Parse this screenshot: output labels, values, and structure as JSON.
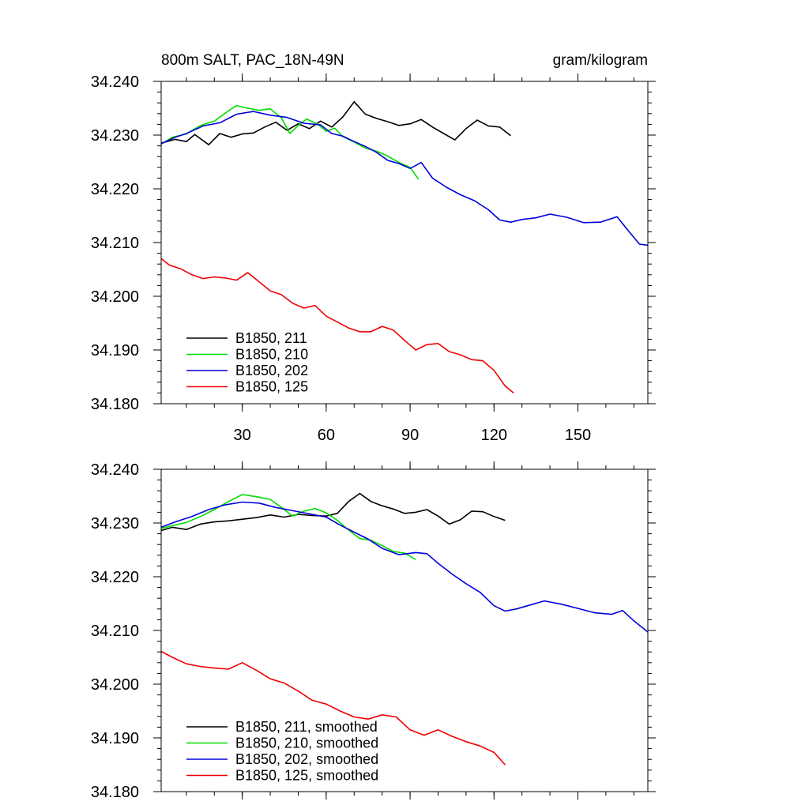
{
  "chart_data": [
    {
      "type": "line",
      "title": "800m SALT, PAC_18N-49N",
      "units": "gram/kilogram",
      "xlim": [
        1,
        175
      ],
      "ylim": [
        34.18,
        34.24
      ],
      "xticks": [
        30,
        60,
        90,
        120,
        150
      ],
      "xtick_labels": [
        "30",
        "60",
        "90",
        "120",
        "150"
      ],
      "yticks": [
        34.18,
        34.19,
        34.2,
        34.21,
        34.22,
        34.23,
        34.24
      ],
      "ytick_labels": [
        "34.180",
        "34.190",
        "34.200",
        "34.210",
        "34.220",
        "34.230",
        "34.240"
      ],
      "legend_position": "bottom-left",
      "series": [
        {
          "name": "B1850, 211",
          "color": "#000000",
          "x": [
            1,
            6,
            10,
            13,
            18,
            22,
            26,
            30,
            34,
            38,
            42,
            46,
            50,
            54,
            58,
            62,
            66,
            70,
            74,
            78,
            82,
            86,
            90,
            94,
            98,
            102,
            106,
            110,
            114,
            118,
            122,
            126
          ],
          "y": [
            34.2285,
            34.2292,
            34.2288,
            34.2301,
            34.2282,
            34.2303,
            34.2296,
            34.2302,
            34.2304,
            34.2315,
            34.2324,
            34.2309,
            34.2321,
            34.2312,
            34.2326,
            34.2315,
            34.2334,
            34.2362,
            34.2339,
            34.2331,
            34.2325,
            34.2318,
            34.2321,
            34.2329,
            34.2315,
            34.2303,
            34.2291,
            34.2312,
            34.2328,
            34.2317,
            34.2315,
            34.2299
          ]
        },
        {
          "name": "B1850, 210",
          "color": "#00dd00",
          "x": [
            1,
            5,
            10,
            15,
            20,
            25,
            28,
            32,
            36,
            40,
            44,
            47,
            50,
            53,
            57,
            60,
            63,
            66,
            70,
            74,
            78,
            82,
            86,
            90,
            93
          ],
          "y": [
            34.2283,
            34.2296,
            34.2302,
            34.2318,
            34.2326,
            34.2345,
            34.2355,
            34.235,
            34.2346,
            34.2349,
            34.2332,
            34.2303,
            34.2318,
            34.233,
            34.232,
            34.2307,
            34.2313,
            34.2297,
            34.2287,
            34.2276,
            34.227,
            34.2261,
            34.2249,
            34.224,
            34.2218
          ]
        },
        {
          "name": "B1850, 202",
          "color": "#0000dd",
          "x": [
            1,
            6,
            10,
            16,
            22,
            28,
            34,
            40,
            46,
            52,
            58,
            62,
            66,
            70,
            74,
            78,
            82,
            86,
            90,
            94,
            98,
            103,
            108,
            113,
            118,
            122,
            126,
            130,
            135,
            140,
            146,
            152,
            158,
            164,
            168,
            172,
            175
          ],
          "y": [
            34.2284,
            34.2296,
            34.2303,
            34.2317,
            34.2323,
            34.2339,
            34.2344,
            34.2337,
            34.2333,
            34.2322,
            34.2319,
            34.2303,
            34.2298,
            34.2288,
            34.2279,
            34.2268,
            34.2253,
            34.2247,
            34.2238,
            34.2249,
            34.222,
            34.2203,
            34.2189,
            34.2178,
            34.2161,
            34.2142,
            34.2138,
            34.2143,
            34.2146,
            34.2153,
            34.2147,
            34.2137,
            34.2138,
            34.2148,
            34.2122,
            34.2097,
            34.2095
          ]
        },
        {
          "name": "B1850, 125",
          "color": "#ee0000",
          "x": [
            1,
            4,
            8,
            12,
            16,
            20,
            24,
            28,
            32,
            36,
            40,
            44,
            48,
            52,
            56,
            60,
            64,
            68,
            72,
            76,
            80,
            84,
            88,
            92,
            96,
            100,
            104,
            108,
            112,
            116,
            120,
            124,
            127
          ],
          "y": [
            34.207,
            34.2058,
            34.2051,
            34.204,
            34.2033,
            34.2036,
            34.2034,
            34.203,
            34.2044,
            34.2027,
            34.201,
            34.2003,
            34.1987,
            34.1978,
            34.1983,
            34.1963,
            34.1952,
            34.1941,
            34.1934,
            34.1934,
            34.1944,
            34.1937,
            34.1918,
            34.19,
            34.191,
            34.1912,
            34.1897,
            34.1891,
            34.1882,
            34.188,
            34.1862,
            34.1833,
            34.182
          ]
        }
      ]
    },
    {
      "type": "line",
      "xlim": [
        1,
        175
      ],
      "ylim": [
        34.18,
        34.24
      ],
      "xticks": [
        30,
        60,
        90,
        120,
        150
      ],
      "yticks": [
        34.18,
        34.19,
        34.2,
        34.21,
        34.22,
        34.23,
        34.24
      ],
      "ytick_labels": [
        "34.180",
        "34.190",
        "34.200",
        "34.210",
        "34.220",
        "34.230",
        "34.240"
      ],
      "legend_position": "bottom-left",
      "series": [
        {
          "name": "B1850, 211, smoothed",
          "color": "#000000",
          "x": [
            1,
            5,
            10,
            15,
            20,
            25,
            30,
            35,
            40,
            45,
            50,
            55,
            60,
            64,
            68,
            72,
            76,
            80,
            84,
            88,
            92,
            96,
            100,
            104,
            108,
            112,
            116,
            120,
            124
          ],
          "y": [
            34.2286,
            34.2292,
            34.2288,
            34.2298,
            34.2302,
            34.2304,
            34.2307,
            34.231,
            34.2315,
            34.2311,
            34.2316,
            34.2314,
            34.2313,
            34.2318,
            34.234,
            34.2355,
            34.234,
            34.2332,
            34.2326,
            34.2318,
            34.232,
            34.2325,
            34.2313,
            34.2298,
            34.2306,
            34.2322,
            34.2321,
            34.2312,
            34.2305
          ]
        },
        {
          "name": "B1850, 210, smoothed",
          "color": "#00dd00",
          "x": [
            1,
            5,
            10,
            15,
            20,
            25,
            30,
            35,
            40,
            44,
            48,
            52,
            56,
            60,
            64,
            68,
            72,
            76,
            80,
            84,
            88,
            92
          ],
          "y": [
            34.229,
            34.2295,
            34.2301,
            34.2312,
            34.2325,
            34.234,
            34.2353,
            34.2349,
            34.2344,
            34.2329,
            34.2313,
            34.2322,
            34.2327,
            34.2319,
            34.2305,
            34.2287,
            34.2271,
            34.2268,
            34.2258,
            34.2247,
            34.2244,
            34.2232
          ]
        },
        {
          "name": "B1850, 202, smoothed",
          "color": "#0000dd",
          "x": [
            1,
            6,
            12,
            18,
            24,
            30,
            36,
            42,
            48,
            54,
            60,
            65,
            70,
            75,
            80,
            86,
            92,
            96,
            100,
            105,
            110,
            115,
            120,
            124,
            128,
            132,
            138,
            144,
            150,
            156,
            162,
            166,
            170,
            175
          ],
          "y": [
            34.2292,
            34.2302,
            34.2312,
            34.2325,
            34.2334,
            34.2339,
            34.2337,
            34.2329,
            34.2323,
            34.2317,
            34.2311,
            34.2296,
            34.2283,
            34.227,
            34.2253,
            34.2241,
            34.2245,
            34.2243,
            34.2225,
            34.2205,
            34.2187,
            34.2171,
            34.2146,
            34.2136,
            34.214,
            34.2146,
            34.2155,
            34.2149,
            34.2141,
            34.2133,
            34.213,
            34.2137,
            34.2118,
            34.2097
          ]
        },
        {
          "name": "B1850, 125, smoothed",
          "color": "#ee0000",
          "x": [
            1,
            5,
            10,
            15,
            20,
            25,
            30,
            35,
            40,
            45,
            50,
            55,
            60,
            65,
            70,
            75,
            80,
            85,
            90,
            95,
            100,
            105,
            110,
            115,
            120,
            124
          ],
          "y": [
            34.2061,
            34.205,
            34.2038,
            34.2033,
            34.203,
            34.2028,
            34.204,
            34.2026,
            34.201,
            34.2002,
            34.1987,
            34.197,
            34.1963,
            34.195,
            34.1939,
            34.1935,
            34.1943,
            34.1939,
            34.1915,
            34.1905,
            34.1915,
            34.1903,
            34.1893,
            34.1885,
            34.1873,
            34.185
          ]
        }
      ]
    }
  ]
}
